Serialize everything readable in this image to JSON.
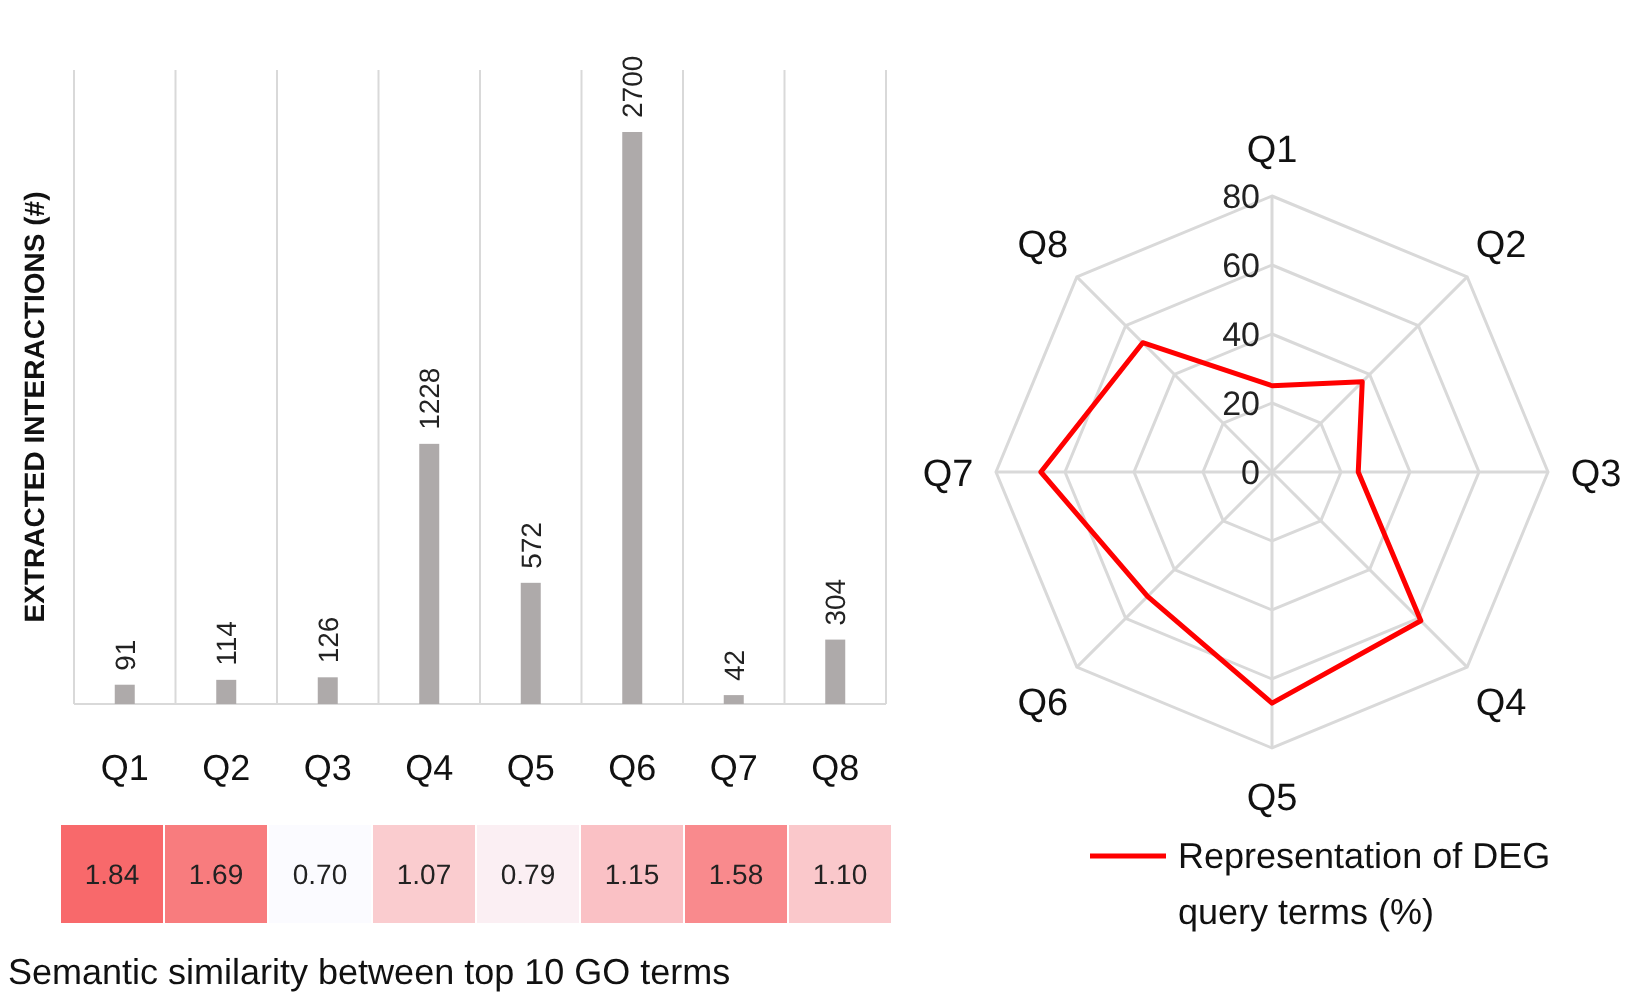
{
  "chart_data": [
    {
      "type": "bar",
      "ylabel": "EXTRACTED INTERACTIONS  (#)",
      "categories": [
        "Q1",
        "Q2",
        "Q3",
        "Q4",
        "Q5",
        "Q6",
        "Q7",
        "Q8"
      ],
      "values": [
        91,
        114,
        126,
        1228,
        572,
        2700,
        42,
        304
      ],
      "color": "#aeaaaa",
      "data_labels": true,
      "grid": true
    },
    {
      "type": "heatmap",
      "xlabel": "Semantic similarity between top 10 GO terms",
      "categories": [
        null,
        null,
        null,
        null,
        null,
        null,
        null,
        null
      ],
      "y_categories": [
        null
      ],
      "cells": [
        [
          1.84,
          1.69,
          0.7,
          1.07,
          0.79,
          1.15,
          1.58,
          1.1
        ]
      ],
      "cell_labels": [
        [
          "1.84",
          "1.69",
          "0.70",
          "1.07",
          "0.79",
          "1.15",
          "1.58",
          "1.10"
        ]
      ]
    },
    {
      "type": "radar",
      "categories": [
        "Q1",
        "Q2",
        "Q3",
        "Q4",
        "Q5",
        "Q6",
        "Q7",
        "Q8"
      ],
      "ylim": [
        0,
        80
      ],
      "yticks": [
        0,
        20,
        40,
        60,
        80
      ],
      "grid": true,
      "legend": "bottom right",
      "series": [
        {
          "name": "Representation of DEG query terms (%)",
          "color": "#ff0000",
          "values": [
            25,
            37,
            25,
            61,
            67,
            51,
            67,
            53
          ]
        }
      ]
    }
  ]
}
